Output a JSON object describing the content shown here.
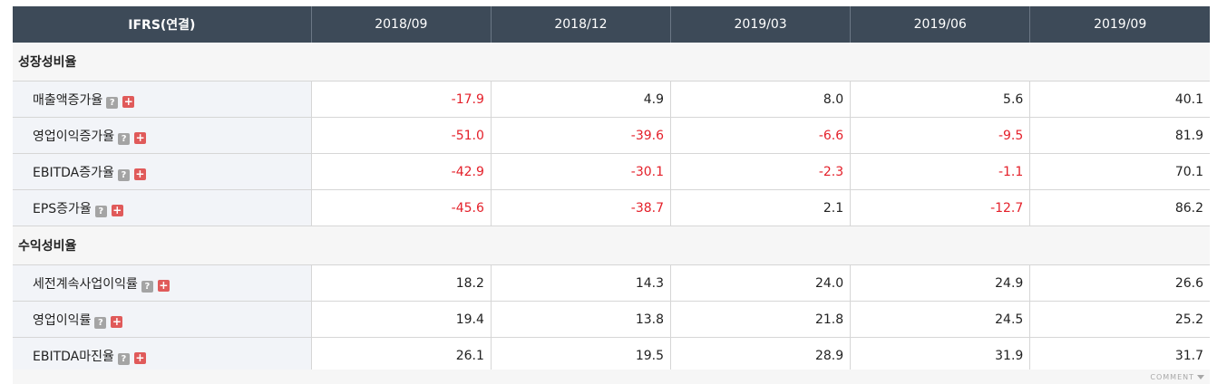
{
  "header": {
    "first": "IFRS(연결)",
    "periods": [
      "2018/09",
      "2018/12",
      "2019/03",
      "2019/06",
      "2019/09"
    ]
  },
  "sections": [
    {
      "title": "성장성비율",
      "rows": [
        {
          "label": "매출액증가율",
          "values": [
            "-17.9",
            "4.9",
            "8.0",
            "5.6",
            "40.1"
          ]
        },
        {
          "label": "영업이익증가율",
          "values": [
            "-51.0",
            "-39.6",
            "-6.6",
            "-9.5",
            "81.9"
          ]
        },
        {
          "label": "EBITDA증가율",
          "values": [
            "-42.9",
            "-30.1",
            "-2.3",
            "-1.1",
            "70.1"
          ]
        },
        {
          "label": "EPS증가율",
          "values": [
            "-45.6",
            "-38.7",
            "2.1",
            "-12.7",
            "86.2"
          ]
        }
      ]
    },
    {
      "title": "수익성비율",
      "rows": [
        {
          "label": "세전계속사업이익률",
          "values": [
            "18.2",
            "14.3",
            "24.0",
            "24.9",
            "26.6"
          ]
        },
        {
          "label": "영업이익률",
          "values": [
            "19.4",
            "13.8",
            "21.8",
            "24.5",
            "25.2"
          ]
        },
        {
          "label": "EBITDA마진율",
          "values": [
            "26.1",
            "19.5",
            "28.9",
            "31.9",
            "31.7"
          ]
        }
      ]
    }
  ],
  "icons": {
    "help": "?",
    "expand": "+"
  },
  "footer": {
    "comment": "COMMENT"
  },
  "colors": {
    "header_bg": "#3d4a58",
    "negative": "#e4202a",
    "label_bg": "#f2f4f8"
  }
}
